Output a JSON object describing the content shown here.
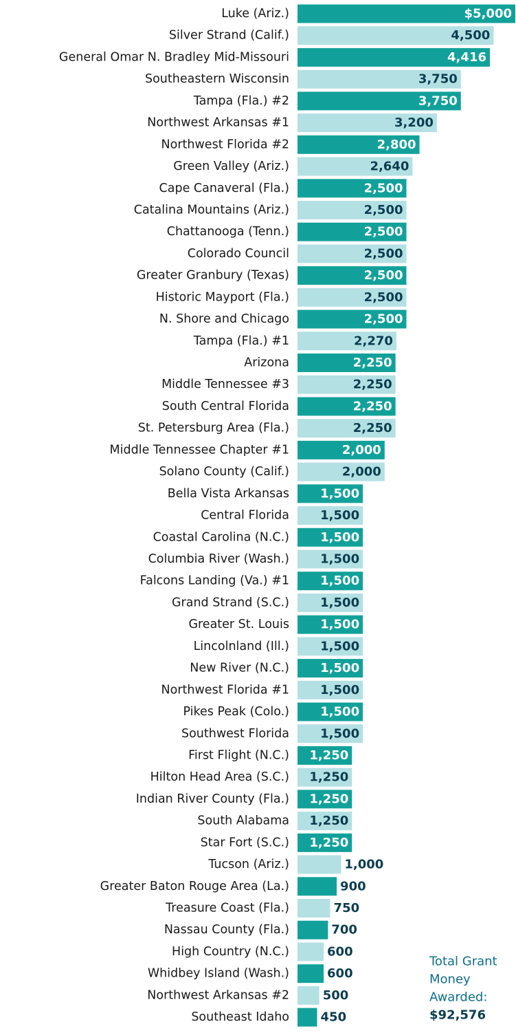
{
  "chart_data": {
    "type": "barh",
    "categories": [
      "Luke (Ariz.)",
      "Silver Strand (Calif.)",
      "General Omar N. Bradley Mid-Missouri",
      "Southeastern Wisconsin",
      "Tampa (Fla.)  #2",
      "Northwest Arkansas #1",
      "Northwest Florida #2",
      "Green Valley (Ariz.)",
      "Cape Canaveral (Fla.)",
      "Catalina Mountains (Ariz.)",
      "Chattanooga (Tenn.)",
      "Colorado Council",
      "Greater Granbury (Texas)",
      "Historic Mayport (Fla.)",
      "N. Shore and Chicago",
      "Tampa (Fla.) #1",
      "Arizona",
      "Middle Tennessee #3",
      "South Central Florida",
      "St. Petersburg Area (Fla.)",
      "Middle Tennessee Chapter #1",
      "Solano County (Calif.)",
      "Bella Vista Arkansas",
      "Central Florida",
      "Coastal Carolina (N.C.)",
      "Columbia River (Wash.)",
      "Falcons Landing (Va.) #1",
      "Grand Strand (S.C.)",
      "Greater St. Louis",
      "Lincolnland (Ill.)",
      "New River (N.C.)",
      "Northwest Florida #1",
      "Pikes Peak (Colo.)",
      "Southwest Florida",
      "First Flight (N.C.)",
      "Hilton Head Area (S.C.)",
      "Indian River County (Fla.)",
      "South Alabama",
      "Star Fort (S.C.)",
      "Tucson (Ariz.)",
      "Greater Baton Rouge Area (La.)",
      "Treasure Coast (Fla.)",
      "Nassau County (Fla.)",
      "High Country (N.C.)",
      "Whidbey Island (Wash.)",
      "Northwest Arkansas #2",
      "Southeast Idaho"
    ],
    "values": [
      5000,
      4500,
      4416,
      3750,
      3750,
      3200,
      2800,
      2640,
      2500,
      2500,
      2500,
      2500,
      2500,
      2500,
      2500,
      2270,
      2250,
      2250,
      2250,
      2250,
      2000,
      2000,
      1500,
      1500,
      1500,
      1500,
      1500,
      1500,
      1500,
      1500,
      1500,
      1500,
      1500,
      1500,
      1250,
      1250,
      1250,
      1250,
      1250,
      1000,
      900,
      750,
      700,
      600,
      600,
      500,
      450
    ],
    "value_labels": [
      "$5,000",
      "4,500",
      "4,416",
      "3,750",
      "3,750",
      "3,200",
      "2,800",
      "2,640",
      "2,500",
      "2,500",
      "2,500",
      "2,500",
      "2,500",
      "2,500",
      "2,500",
      "2,270",
      "2,250",
      "2,250",
      "2,250",
      "2,250",
      "2,000",
      "2,000",
      "1,500",
      "1,500",
      "1,500",
      "1,500",
      "1,500",
      "1,500",
      "1,500",
      "1,500",
      "1,500",
      "1,500",
      "1,500",
      "1,500",
      "1,250",
      "1,250",
      "1,250",
      "1,250",
      "1,250",
      "1,000",
      "900",
      "750",
      "700",
      "600",
      "600",
      "500",
      "450"
    ],
    "colors": [
      "#12a19a",
      "#b3e0e3"
    ],
    "xlim": [
      0,
      5000
    ],
    "annotation": [
      "Total Grant",
      "Money",
      "Awarded:",
      "$92,576"
    ]
  }
}
